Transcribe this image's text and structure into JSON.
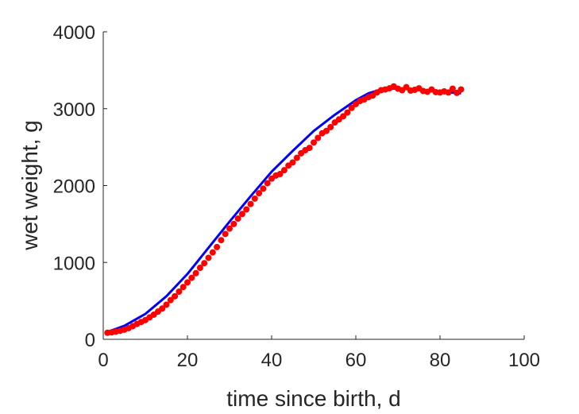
{
  "chart_data": {
    "type": "scatter",
    "title": "",
    "xlabel": "time since birth, d",
    "ylabel": "wet weight, g",
    "xlim": [
      0,
      100
    ],
    "ylim": [
      0,
      4000
    ],
    "xticks": [
      0,
      20,
      40,
      60,
      80,
      100
    ],
    "yticks": [
      0,
      1000,
      2000,
      3000,
      4000
    ],
    "grid": false,
    "legend": "none",
    "series": [
      {
        "kind": "line",
        "color": "#0000ff",
        "x": [
          1,
          5,
          10,
          15,
          20,
          25,
          30,
          35,
          40,
          45,
          50,
          55,
          60,
          63,
          66,
          70,
          75,
          80,
          85
        ],
        "y": [
          95,
          175,
          330,
          560,
          850,
          1190,
          1530,
          1860,
          2180,
          2450,
          2710,
          2920,
          3110,
          3200,
          3250,
          3265,
          3245,
          3220,
          3200
        ]
      },
      {
        "kind": "points",
        "color": "#ff0000",
        "x": [
          1,
          2,
          3,
          4,
          5,
          6,
          7,
          8,
          9,
          10,
          11,
          12,
          13,
          14,
          15,
          16,
          17,
          18,
          19,
          20,
          21,
          22,
          23,
          24,
          25,
          26,
          27,
          28,
          29,
          30,
          31,
          32,
          33,
          34,
          35,
          36,
          37,
          38,
          39,
          40,
          41,
          42,
          43,
          44,
          45,
          46,
          47,
          48,
          49,
          50,
          51,
          52,
          53,
          54,
          55,
          56,
          57,
          58,
          59,
          60,
          61,
          62,
          63,
          64,
          65,
          66,
          67,
          68,
          69,
          70,
          71,
          72,
          73,
          74,
          75,
          76,
          77,
          78,
          79,
          80,
          81,
          82,
          83,
          84,
          85
        ],
        "y": [
          85,
          90,
          100,
          110,
          125,
          145,
          170,
          200,
          225,
          250,
          285,
          320,
          360,
          400,
          450,
          510,
          560,
          620,
          680,
          740,
          800,
          860,
          930,
          990,
          1060,
          1130,
          1200,
          1290,
          1370,
          1440,
          1500,
          1570,
          1630,
          1690,
          1760,
          1830,
          1900,
          1960,
          2030,
          2090,
          2130,
          2150,
          2200,
          2260,
          2300,
          2360,
          2420,
          2460,
          2490,
          2560,
          2620,
          2680,
          2710,
          2760,
          2820,
          2860,
          2900,
          2950,
          3010,
          3060,
          3100,
          3120,
          3150,
          3170,
          3210,
          3240,
          3250,
          3265,
          3290,
          3260,
          3240,
          3280,
          3235,
          3245,
          3265,
          3230,
          3220,
          3250,
          3215,
          3210,
          3225,
          3210,
          3260,
          3205,
          3250
        ]
      }
    ]
  }
}
